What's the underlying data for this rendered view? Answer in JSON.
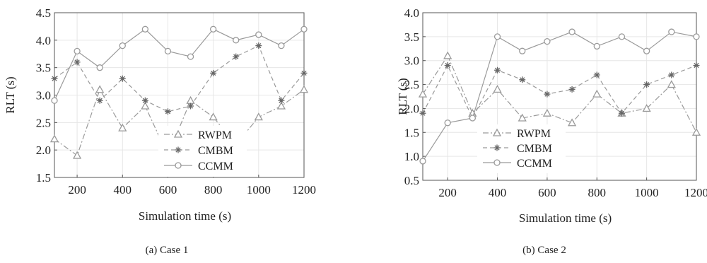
{
  "chart_data": [
    {
      "type": "line",
      "caption": "(a) Case 1",
      "xlabel": "Simulation time (s)",
      "ylabel": "RLT (s)",
      "xlim": [
        100,
        1200
      ],
      "ylim": [
        1.5,
        4.5
      ],
      "xticks": [
        200,
        400,
        600,
        800,
        1000,
        1200
      ],
      "yticks": [
        1.5,
        2.0,
        2.5,
        3.0,
        3.5,
        4.0,
        4.5
      ],
      "grid": true,
      "legend_position": "lower-middle",
      "x": [
        100,
        200,
        300,
        400,
        500,
        600,
        700,
        800,
        900,
        1000,
        1100,
        1200
      ],
      "series": [
        {
          "name": "RWPM",
          "marker": "triangle",
          "dash": "dashdot",
          "color": "#9a9a9a",
          "values": [
            2.2,
            1.9,
            3.1,
            2.4,
            2.8,
            1.9,
            2.9,
            2.6,
            2.1,
            2.6,
            2.8,
            3.1
          ]
        },
        {
          "name": "CMBM",
          "marker": "star",
          "dash": "dashed",
          "color": "#9a9a9a",
          "values": [
            3.3,
            3.6,
            2.9,
            3.3,
            2.9,
            2.7,
            2.8,
            3.4,
            3.7,
            3.9,
            2.9,
            3.4
          ]
        },
        {
          "name": "CCMM",
          "marker": "circle",
          "dash": "solid",
          "color": "#9a9a9a",
          "values": [
            2.9,
            3.8,
            3.5,
            3.9,
            4.2,
            3.8,
            3.7,
            4.2,
            4.0,
            4.1,
            3.9,
            4.2
          ]
        }
      ]
    },
    {
      "type": "line",
      "caption": "(b) Case 2",
      "xlabel": "Simulation time (s)",
      "ylabel": "RLT (s)",
      "xlim": [
        100,
        1200
      ],
      "ylim": [
        0.5,
        4.0
      ],
      "xticks": [
        200,
        400,
        600,
        800,
        1000,
        1200
      ],
      "yticks": [
        0.5,
        1.0,
        1.5,
        2.0,
        2.5,
        3.0,
        3.5,
        4.0
      ],
      "grid": true,
      "legend_position": "lower-middle",
      "x": [
        100,
        200,
        300,
        400,
        500,
        600,
        700,
        800,
        900,
        1000,
        1100,
        1200
      ],
      "series": [
        {
          "name": "RWPM",
          "marker": "triangle",
          "dash": "dashdot",
          "color": "#9a9a9a",
          "values": [
            2.3,
            3.1,
            1.9,
            2.4,
            1.8,
            1.9,
            1.7,
            2.3,
            1.9,
            2.0,
            2.5,
            1.5
          ]
        },
        {
          "name": "CMBM",
          "marker": "star",
          "dash": "dashed",
          "color": "#9a9a9a",
          "values": [
            1.9,
            2.9,
            1.8,
            2.8,
            2.6,
            2.3,
            2.4,
            2.7,
            1.9,
            2.5,
            2.7,
            2.9
          ]
        },
        {
          "name": "CCMM",
          "marker": "circle",
          "dash": "solid",
          "color": "#9a9a9a",
          "values": [
            0.9,
            1.7,
            1.8,
            3.5,
            3.2,
            3.4,
            3.6,
            3.3,
            3.5,
            3.2,
            3.6,
            3.5
          ]
        }
      ]
    }
  ]
}
